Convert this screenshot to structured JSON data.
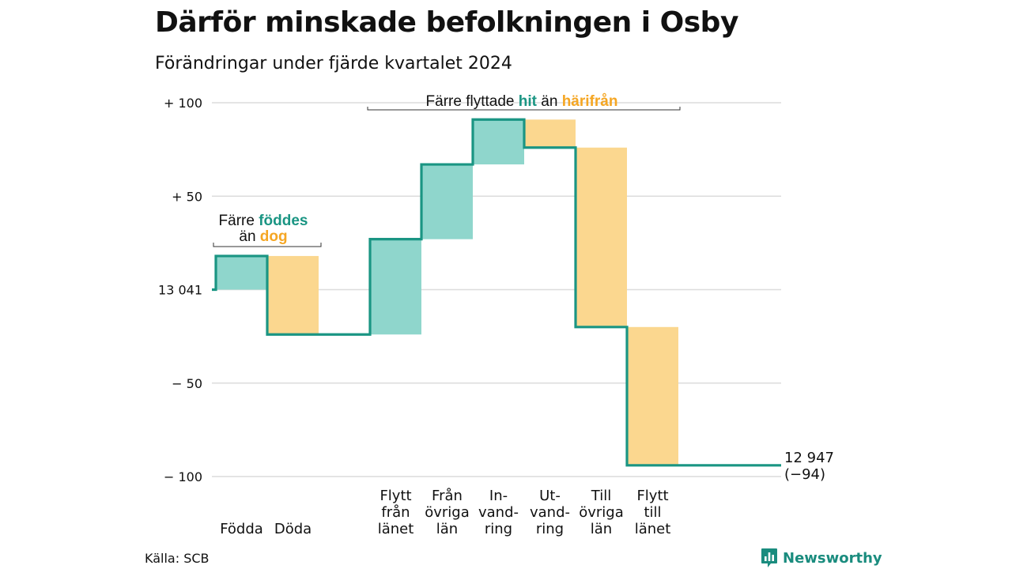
{
  "title": "Därför minskade befolkningen i Osby",
  "subtitle": "Förändringar under fjärde kvartalet 2024",
  "source": "Källa: SCB",
  "logo": {
    "text": "Newsworthy",
    "icon": "newsworthy-logo-icon"
  },
  "colors": {
    "gain": "#8fd6cc",
    "loss": "#fbd78f",
    "line": "#1a9583",
    "grid": "#dcdcdc",
    "hit": "#1a9583",
    "harifran": "#f5a623"
  },
  "chart_data": {
    "type": "waterfall",
    "start_value": 13041,
    "end_value": 12947,
    "net_change": -94,
    "ylim": [
      -100,
      100
    ],
    "y_ticks": [
      {
        "value": 100,
        "label": "+ 100"
      },
      {
        "value": 50,
        "label": "+  50"
      },
      {
        "value": 0,
        "label": "13 041"
      },
      {
        "value": -50,
        "label": "−  50"
      },
      {
        "value": -100,
        "label": "− 100"
      }
    ],
    "steps": [
      {
        "category": [
          "Födda"
        ],
        "value": 18,
        "kind": "gain"
      },
      {
        "category": [
          "Döda"
        ],
        "value": -42,
        "kind": "loss"
      },
      {
        "category": [],
        "value": 0,
        "kind": "gap"
      },
      {
        "category": [
          "Flytt",
          "från",
          "länet"
        ],
        "value": 51,
        "kind": "gain"
      },
      {
        "category": [
          "Från",
          "övriga",
          "län"
        ],
        "value": 40,
        "kind": "gain"
      },
      {
        "category": [
          "In-",
          "vand-",
          "ring"
        ],
        "value": 24,
        "kind": "gain"
      },
      {
        "category": [
          "Ut-",
          "vand-",
          "ring"
        ],
        "value": -15,
        "kind": "loss"
      },
      {
        "category": [
          "Till",
          "övriga",
          "län"
        ],
        "value": -96,
        "kind": "loss"
      },
      {
        "category": [
          "Flytt",
          "till",
          "länet"
        ],
        "value": -74,
        "kind": "loss"
      }
    ],
    "end_label": [
      "12 947",
      "(−94)"
    ],
    "annotations": [
      {
        "parts": [
          "Färre ",
          "föddes"
        ],
        "line2": [
          "än ",
          "dog"
        ]
      },
      {
        "parts": [
          "Färre flyttade ",
          "hit",
          "  än ",
          "härifrån"
        ]
      }
    ]
  }
}
